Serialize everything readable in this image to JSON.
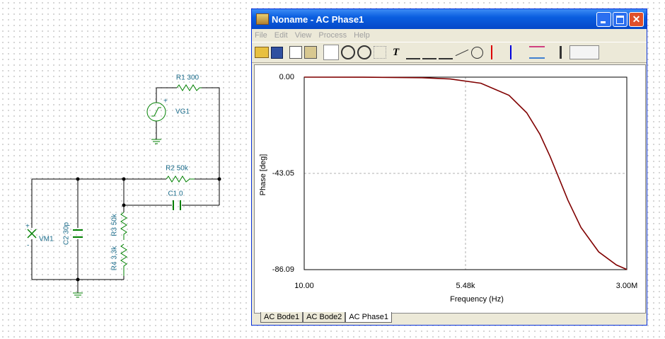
{
  "window": {
    "title": "Noname - AC Phase1",
    "menu": [
      "File",
      "Edit",
      "View",
      "Process",
      "Help"
    ],
    "tabs": [
      "AC Bode1",
      "AC Bode2",
      "AC Phase1"
    ]
  },
  "schematic": {
    "labels": [
      "R1 300",
      "VG1",
      "+",
      "R2 50k",
      "C1 0",
      "R3 50k",
      "R4 3,3k",
      "C2 30p",
      "VM1",
      "+",
      "-"
    ]
  },
  "chart_data": {
    "type": "line",
    "x_label": "Frequency (Hz)",
    "y_label": "Phase [deg]",
    "x_scale": "log",
    "color": "#800000",
    "grid": true,
    "x": [
      10,
      100,
      1000,
      3000,
      10000,
      30000,
      60000,
      100000,
      150000,
      200000,
      300000,
      500000,
      1000000,
      2000000,
      3000000
    ],
    "values": [
      0,
      -0.03,
      -0.27,
      -0.82,
      -2.73,
      -8.13,
      -15.95,
      -25.46,
      -35.54,
      -43.6,
      -55.01,
      -67.22,
      -78.14,
      -84.0,
      -86.0
    ],
    "xlim": [
      10,
      3000000
    ],
    "xticks": [
      {
        "value": 10,
        "label": "10.00"
      },
      {
        "value": 5480,
        "label": "5.48k"
      },
      {
        "value": 3000000,
        "label": "3.00M"
      }
    ],
    "ylim": [
      -86.09,
      0
    ],
    "yticks": [
      {
        "value": 0,
        "label": "0.00"
      },
      -43.05,
      -86.09
    ]
  }
}
